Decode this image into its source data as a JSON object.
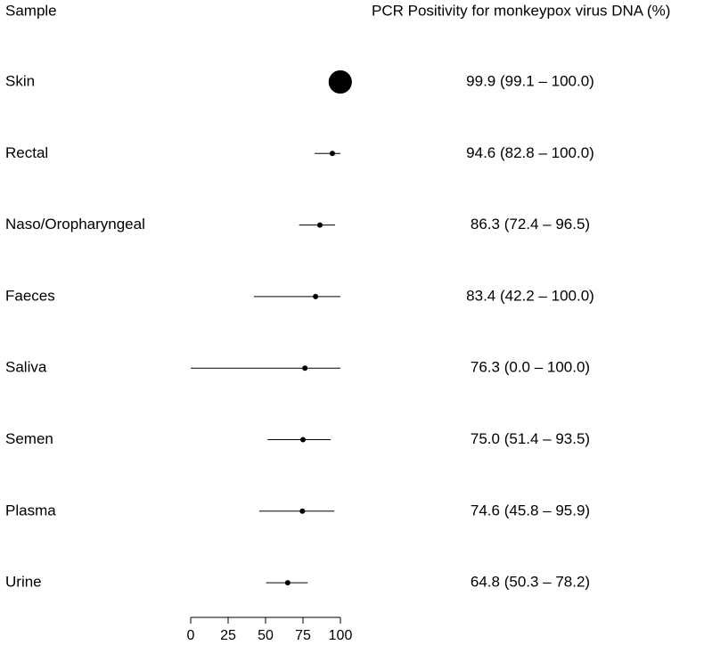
{
  "chart_data": {
    "type": "forest",
    "label_header": "Sample",
    "value_header": "PCR Positivity for monkeypox virus DNA (%)",
    "categories": [
      "Skin",
      "Rectal",
      "Naso/Oropharyngeal",
      "Faeces",
      "Saliva",
      "Semen",
      "Plasma",
      "Urine"
    ],
    "values": [
      99.9,
      94.6,
      86.3,
      83.4,
      76.3,
      75.0,
      74.6,
      64.8
    ],
    "lower": [
      99.1,
      82.8,
      72.4,
      42.2,
      0.0,
      51.4,
      45.8,
      50.3
    ],
    "upper": [
      100.0,
      100.0,
      96.5,
      100.0,
      100.0,
      93.5,
      95.9,
      78.2
    ],
    "weights": [
      19,
      1,
      1,
      1,
      1,
      1,
      1,
      1
    ],
    "value_labels": [
      "99.9 (99.1 – 100.0)",
      "94.6 (82.8 – 100.0)",
      "86.3 (72.4 – 96.5)",
      "83.4 (42.2 – 100.0)",
      "76.3 (0.0 – 100.0)",
      "75.0 (51.4 – 93.5)",
      "74.6 (45.8 – 95.9)",
      "64.8 (50.3 – 78.2)"
    ],
    "color": "#000000",
    "xlim": [
      0,
      100
    ],
    "xticks": [
      0,
      25,
      50,
      75,
      100
    ]
  }
}
